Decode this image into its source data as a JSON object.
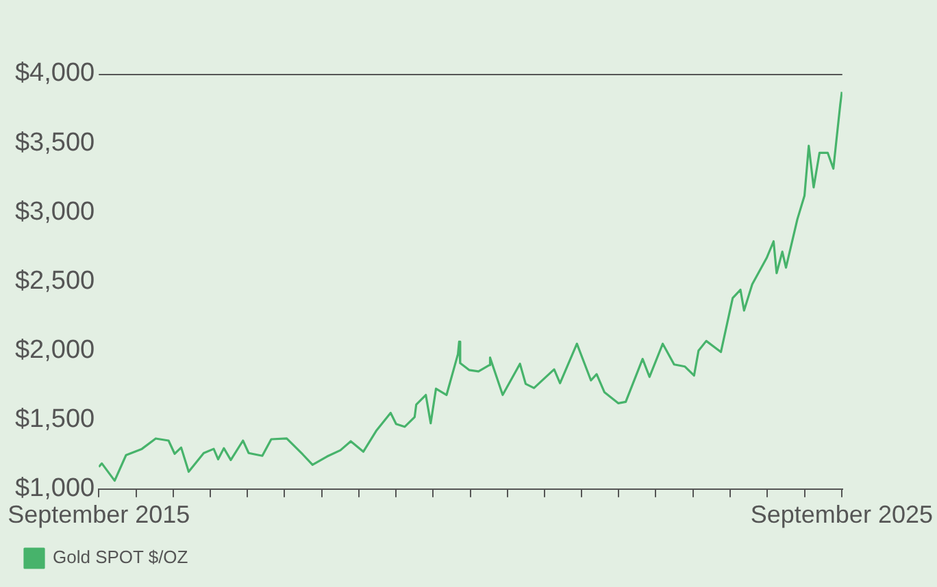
{
  "chart_data": {
    "type": "line",
    "legend": "bottom left",
    "grid": false,
    "marker": "none",
    "line_style": "solid",
    "xlim": [
      "2015-09-30",
      "2025-10-03"
    ],
    "xticks": [
      {
        "value": "2015-09-30",
        "label": "September 2015"
      },
      {
        "value": "2016-03-31",
        "label": null
      },
      {
        "value": "2016-09-30",
        "label": null
      },
      {
        "value": "2017-03-31",
        "label": null
      },
      {
        "value": "2017-09-30",
        "label": null
      },
      {
        "value": "2018-03-31",
        "label": null
      },
      {
        "value": "2018-09-30",
        "label": null
      },
      {
        "value": "2019-03-31",
        "label": null
      },
      {
        "value": "2019-09-30",
        "label": null
      },
      {
        "value": "2020-03-31",
        "label": null
      },
      {
        "value": "2020-09-30",
        "label": null
      },
      {
        "value": "2021-03-31",
        "label": null
      },
      {
        "value": "2021-09-30",
        "label": null
      },
      {
        "value": "2022-03-31",
        "label": null
      },
      {
        "value": "2022-09-30",
        "label": null
      },
      {
        "value": "2023-03-31",
        "label": null
      },
      {
        "value": "2023-09-30",
        "label": null
      },
      {
        "value": "2024-03-31",
        "label": null
      },
      {
        "value": "2024-09-30",
        "label": null
      },
      {
        "value": "2025-03-31",
        "label": null
      },
      {
        "value": "2025-09-30",
        "label": "September 2025"
      }
    ],
    "ylim": [
      1000,
      4000
    ],
    "yticks": [
      {
        "value": 1000,
        "label": "$1,000"
      },
      {
        "value": 1500,
        "label": "$1,500"
      },
      {
        "value": 2000,
        "label": "$2,000"
      },
      {
        "value": 2500,
        "label": "$2,500"
      },
      {
        "value": 3000,
        "label": "$3,000"
      },
      {
        "value": 3500,
        "label": "$3,500"
      },
      {
        "value": 4000,
        "label": "$4,000"
      }
    ],
    "x": [
      "2015-09-30",
      "2015-10-15",
      "2015-12-17",
      "2016-02-11",
      "2016-04-29",
      "2016-07-06",
      "2016-09-07",
      "2016-10-07",
      "2016-11-08",
      "2016-12-15",
      "2017-02-27",
      "2017-04-17",
      "2017-05-09",
      "2017-06-06",
      "2017-07-10",
      "2017-09-08",
      "2017-10-06",
      "2017-12-12",
      "2018-01-25",
      "2018-04-11",
      "2018-06-29",
      "2018-08-16",
      "2018-10-26",
      "2018-12-31",
      "2019-02-20",
      "2019-04-23",
      "2019-06-25",
      "2019-09-04",
      "2019-10-01",
      "2019-11-12",
      "2019-12-31",
      "2020-01-08",
      "2020-02-24",
      "2020-03-19",
      "2020-04-14",
      "2020-06-05",
      "2020-07-31",
      "2020-08-06",
      "2020-08-11",
      "2020-09-24",
      "2020-11-09",
      "2020-12-31",
      "2021-01-05",
      "2021-03-08",
      "2021-06-01",
      "2021-06-29",
      "2021-08-09",
      "2021-11-16",
      "2021-12-15",
      "2022-03-08",
      "2022-05-16",
      "2022-06-13",
      "2022-07-21",
      "2022-09-28",
      "2022-11-03",
      "2023-01-25",
      "2023-02-28",
      "2023-05-04",
      "2023-06-29",
      "2023-08-21",
      "2023-10-05",
      "2023-10-27",
      "2023-12-04",
      "2024-02-14",
      "2024-04-12",
      "2024-05-20",
      "2024-06-07",
      "2024-07-17",
      "2024-09-26",
      "2024-10-30",
      "2024-11-14",
      "2024-12-12",
      "2024-12-30",
      "2025-02-24",
      "2025-03-31",
      "2025-04-21",
      "2025-05-15",
      "2025-06-13",
      "2025-07-23",
      "2025-08-20",
      "2025-09-01",
      "2025-09-23",
      "2025-10-01"
    ],
    "series": [
      {
        "name": "Gold SPOT $/OZ",
        "color": "#47b36b",
        "values": [
          1160,
          1185,
          1060,
          1245,
          1290,
          1365,
          1350,
          1255,
          1300,
          1125,
          1260,
          1290,
          1215,
          1295,
          1210,
          1350,
          1260,
          1240,
          1360,
          1365,
          1250,
          1175,
          1235,
          1280,
          1345,
          1270,
          1420,
          1550,
          1470,
          1450,
          1520,
          1610,
          1680,
          1475,
          1725,
          1680,
          1975,
          2065,
          1910,
          1860,
          1850,
          1895,
          1950,
          1680,
          1905,
          1760,
          1730,
          1865,
          1765,
          2050,
          1785,
          1830,
          1700,
          1620,
          1630,
          1940,
          1810,
          2050,
          1900,
          1885,
          1820,
          2000,
          2070,
          1990,
          2380,
          2440,
          2290,
          2480,
          2670,
          2790,
          2560,
          2715,
          2600,
          2950,
          3120,
          3480,
          3180,
          3430,
          3430,
          3315,
          3480,
          3780,
          3870
        ]
      }
    ]
  }
}
